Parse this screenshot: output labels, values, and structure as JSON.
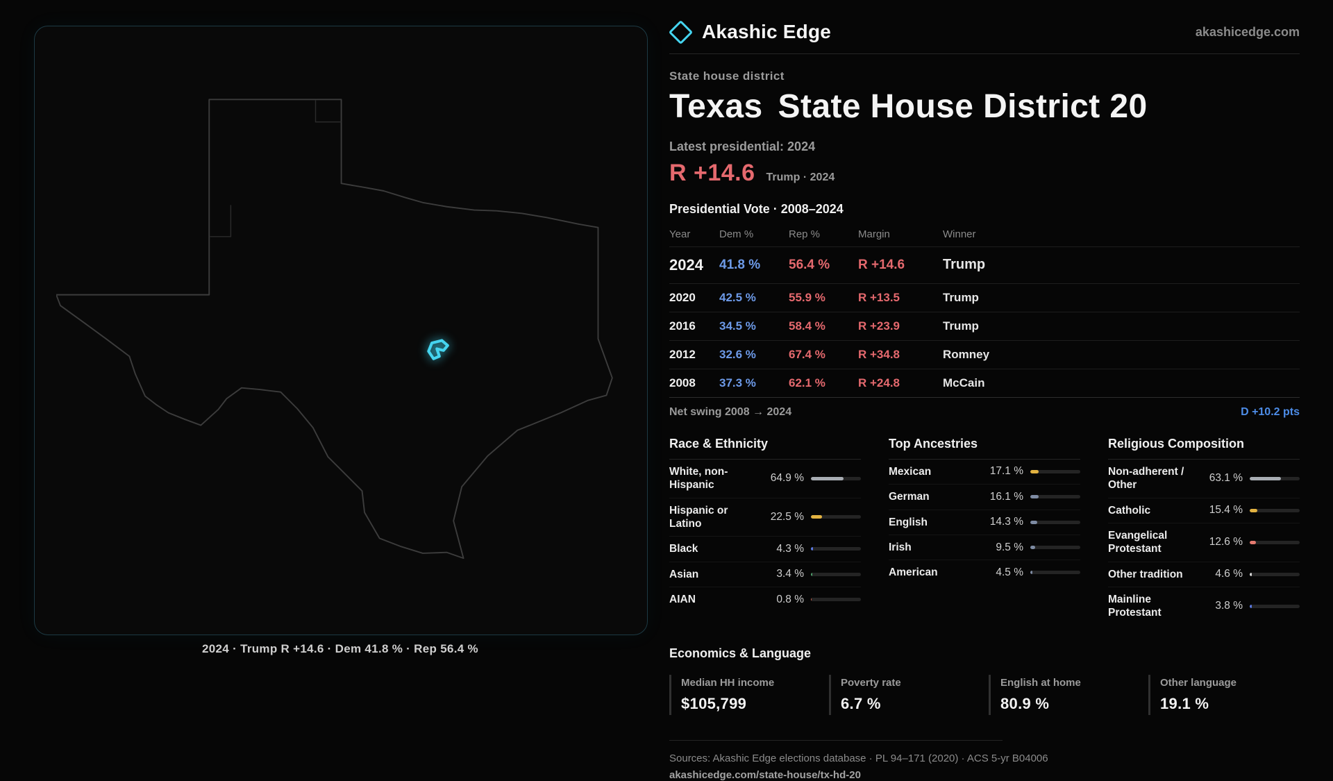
{
  "brand": {
    "name": "Akashic Edge",
    "domain_link": "akashicedge.com"
  },
  "map": {
    "caption": "2024 · Trump R +14.6 · Dem 41.8 % · Rep 56.4 %"
  },
  "district": {
    "kicker": "State house district",
    "title_state": "Texas",
    "title_rest": "State House District 20",
    "latest_label": "Latest presidential: 2024",
    "headline_margin": "R +14.6",
    "headline_context": "Trump · 2024"
  },
  "vote_table": {
    "title": "Presidential Vote · 2008–2024",
    "columns": [
      "Year",
      "Dem %",
      "Rep %",
      "Margin",
      "Winner"
    ],
    "rows": [
      {
        "year": "2024",
        "dem": "41.8 %",
        "rep": "56.4 %",
        "margin": "R +14.6",
        "winner": "Trump",
        "featured": true
      },
      {
        "year": "2020",
        "dem": "42.5 %",
        "rep": "55.9 %",
        "margin": "R +13.5",
        "winner": "Trump"
      },
      {
        "year": "2016",
        "dem": "34.5 %",
        "rep": "58.4 %",
        "margin": "R +23.9",
        "winner": "Trump"
      },
      {
        "year": "2012",
        "dem": "32.6 %",
        "rep": "67.4 %",
        "margin": "R +34.8",
        "winner": "Romney"
      },
      {
        "year": "2008",
        "dem": "37.3 %",
        "rep": "62.1 %",
        "margin": "R +24.8",
        "winner": "McCain"
      }
    ],
    "net_swing_label": "Net swing 2008 → 2024",
    "net_swing_value": "D +10.2 pts"
  },
  "demographics": [
    {
      "key": "race",
      "title": "Race & Ethnicity",
      "rows": [
        {
          "label": "White, non-Hispanic",
          "value": "64.9 %",
          "pct": 64.9,
          "color": "#a8adb3"
        },
        {
          "label": "Hispanic or Latino",
          "value": "22.5 %",
          "pct": 22.5,
          "color": "#e3b341"
        },
        {
          "label": "Black",
          "value": "4.3 %",
          "pct": 4.3,
          "color": "#5b79e3"
        },
        {
          "label": "Asian",
          "value": "3.4 %",
          "pct": 3.4,
          "color": "#4fa06c"
        },
        {
          "label": "AIAN",
          "value": "0.8 %",
          "pct": 0.8,
          "color": "#c4604d"
        }
      ]
    },
    {
      "key": "ancestries",
      "title": "Top Ancestries",
      "rows": [
        {
          "label": "Mexican",
          "value": "17.1 %",
          "pct": 17.1,
          "color": "#e3b341"
        },
        {
          "label": "German",
          "value": "16.1 %",
          "pct": 16.1,
          "color": "#7e8ba3"
        },
        {
          "label": "English",
          "value": "14.3 %",
          "pct": 14.3,
          "color": "#7e8ba3"
        },
        {
          "label": "Irish",
          "value": "9.5 %",
          "pct": 9.5,
          "color": "#7e8ba3"
        },
        {
          "label": "American",
          "value": "4.5 %",
          "pct": 4.5,
          "color": "#7e8ba3"
        }
      ]
    },
    {
      "key": "religion",
      "title": "Religious Composition",
      "rows": [
        {
          "label": "Non-adherent / Other",
          "value": "63.1 %",
          "pct": 63.1,
          "color": "#a8adb3"
        },
        {
          "label": "Catholic",
          "value": "15.4 %",
          "pct": 15.4,
          "color": "#e3b341"
        },
        {
          "label": "Evangelical Protestant",
          "value": "12.6 %",
          "pct": 12.6,
          "color": "#e57a70"
        },
        {
          "label": "Other tradition",
          "value": "4.6 %",
          "pct": 4.6,
          "color": "#d9d9d9"
        },
        {
          "label": "Mainline Protestant",
          "value": "3.8 %",
          "pct": 3.8,
          "color": "#5b79e3"
        }
      ]
    }
  ],
  "economics": {
    "title": "Economics & Language",
    "stats": [
      {
        "label": "Median HH income",
        "value": "$105,799"
      },
      {
        "label": "Poverty rate",
        "value": "6.7 %"
      },
      {
        "label": "English at home",
        "value": "80.9 %"
      },
      {
        "label": "Other language",
        "value": "19.1 %"
      }
    ]
  },
  "footer": {
    "sources": "Sources: Akashic Edge elections database · PL 94–171 (2020) · ACS 5-yr B04006",
    "link": "akashicedge.com/state-house/tx-hd-20"
  },
  "colors": {
    "dem_blue": "#6d9ae8",
    "rep_red": "#e5696e",
    "swing_blue": "#4d8de8",
    "accent_cyan": "#45d4ef"
  }
}
